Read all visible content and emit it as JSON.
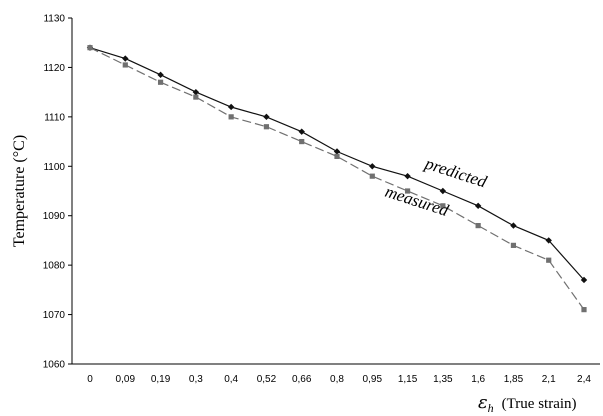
{
  "chart_data": {
    "type": "line",
    "title": "",
    "ylabel": "Temperature (°C)",
    "xlabel": {
      "symbol": "ε",
      "subscript": "h",
      "text": "(True strain)"
    },
    "ylim": [
      1060,
      1130
    ],
    "yticks": [
      1060,
      1070,
      1080,
      1090,
      1100,
      1110,
      1120,
      1130
    ],
    "categories": [
      "0",
      "0,09",
      "0,19",
      "0,3",
      "0,4",
      "0,52",
      "0,66",
      "0,8",
      "0,95",
      "1,15",
      "1,35",
      "1,6",
      "1,85",
      "2,1",
      "2,4"
    ],
    "grid": false,
    "series": [
      {
        "name": "predicted",
        "values": [
          1124,
          1121.8,
          1118.5,
          1115,
          1112,
          1110,
          1107,
          1103,
          1100,
          1098,
          1095,
          1092,
          1088,
          1085,
          1077
        ],
        "color": "#111111",
        "marker": "diamond",
        "line": "solid"
      },
      {
        "name": "measured",
        "values": [
          1124,
          1120.5,
          1117,
          1114,
          1110,
          1108,
          1105,
          1102,
          1098,
          1095,
          1092,
          1088,
          1084,
          1081,
          1071
        ],
        "color": "#707070",
        "marker": "square",
        "line": "dashed"
      }
    ],
    "annotations": [
      {
        "text": "predicted"
      },
      {
        "text": "measured"
      }
    ]
  }
}
